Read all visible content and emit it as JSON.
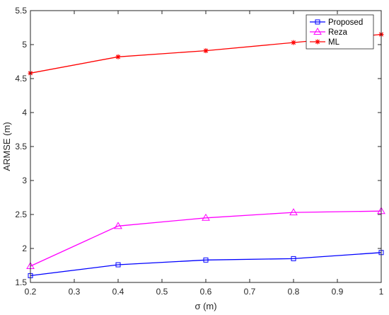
{
  "chart_data": {
    "type": "line",
    "xlabel": "σ (m)",
    "ylabel": "ARMSE (m)",
    "xlim": [
      0.2,
      1.0
    ],
    "ylim": [
      1.5,
      5.5
    ],
    "xticks": [
      "0.2",
      "0.3",
      "0.4",
      "0.5",
      "0.6",
      "0.7",
      "0.8",
      "0.9",
      "1"
    ],
    "yticks": [
      "1.5",
      "2",
      "2.5",
      "3",
      "3.5",
      "4",
      "4.5",
      "5",
      "5.5"
    ],
    "grid": false,
    "legend_position": "top-right",
    "x": [
      0.2,
      0.4,
      0.6,
      0.8,
      1.0
    ],
    "series": [
      {
        "name": "Proposed",
        "color": "#0000ff",
        "marker": "square",
        "values": [
          1.6,
          1.76,
          1.83,
          1.85,
          1.94
        ]
      },
      {
        "name": "Reza",
        "color": "#ff00ff",
        "marker": "triangle",
        "values": [
          1.74,
          2.33,
          2.45,
          2.53,
          2.55
        ]
      },
      {
        "name": "ML",
        "color": "#ff0000",
        "marker": "star",
        "values": [
          4.58,
          4.82,
          4.91,
          5.03,
          5.15
        ]
      }
    ]
  }
}
